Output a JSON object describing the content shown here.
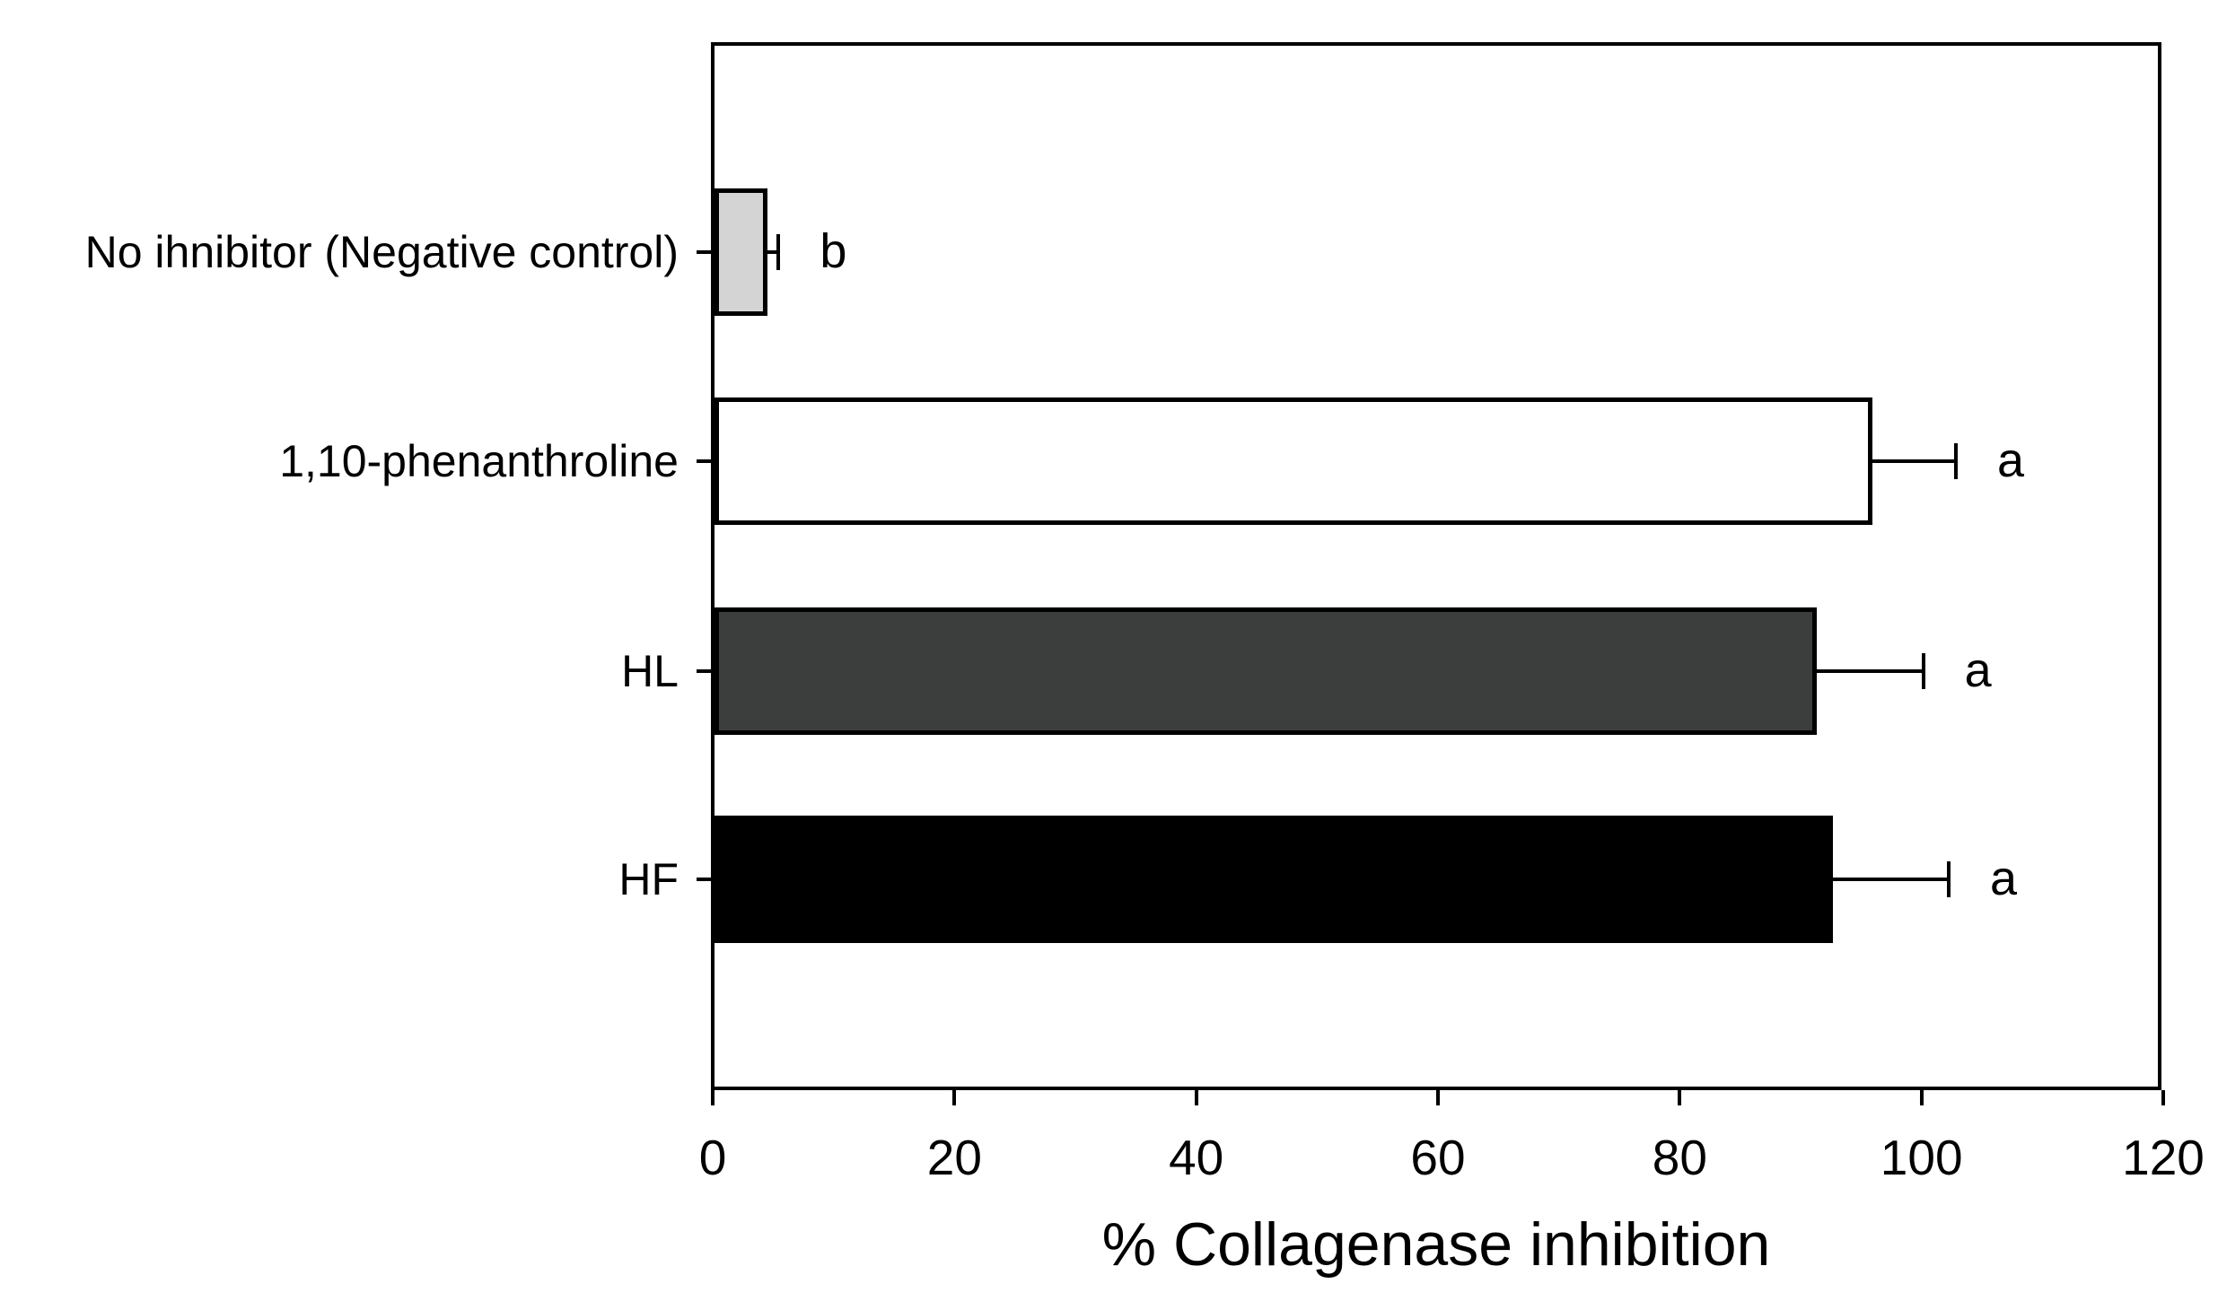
{
  "chart_data": {
    "type": "bar",
    "orientation": "horizontal",
    "title": "",
    "xlabel": "% Collagenase inhibition",
    "ylabel": "",
    "xlim": [
      0,
      120
    ],
    "xticks": [
      0,
      20,
      40,
      60,
      80,
      100,
      120
    ],
    "grid": false,
    "legend": false,
    "categories": [
      "No ihnibitor (Negative control)",
      "1,10-phenanthroline",
      "HL",
      "HF"
    ],
    "values": [
      4.4,
      95.8,
      91.2,
      92.5
    ],
    "errors_plus": [
      0.9,
      6.9,
      8.8,
      9.6
    ],
    "sig_letters": [
      "b",
      "a",
      "a",
      "a"
    ],
    "bar_fill_colors": [
      "#d4d4d4",
      "#ffffff",
      "#3c3e3d",
      "#000000"
    ],
    "bar_border_color": "#000000",
    "axis_color": "#000000"
  }
}
